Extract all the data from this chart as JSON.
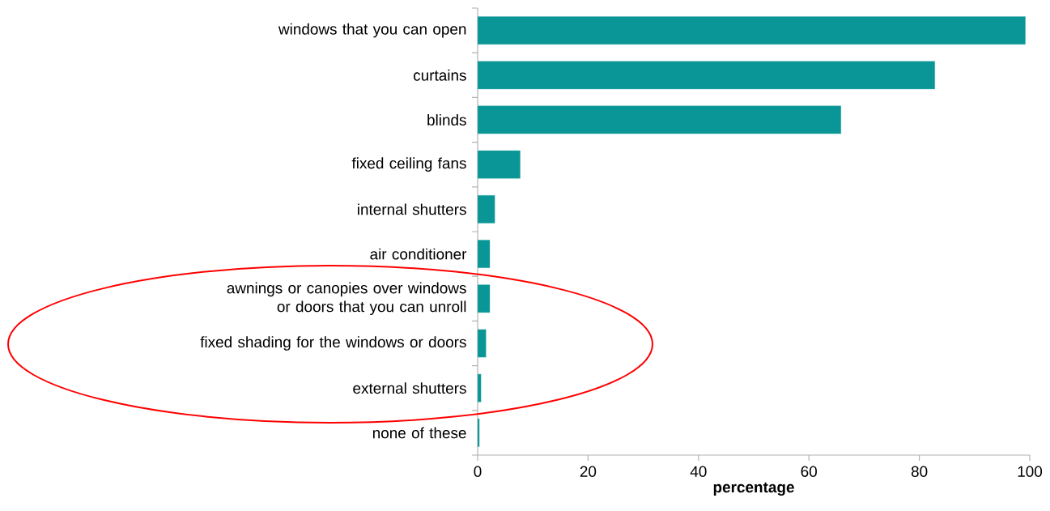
{
  "chart_data": {
    "type": "bar",
    "orientation": "horizontal",
    "xlabel": "percentage",
    "categories": [
      "windows that you can open",
      "curtains",
      "blinds",
      "fixed ceiling fans",
      "internal shutters",
      "air conditioner",
      "awnings or canopies over windows or doors that you can unroll",
      "fixed shading for the windows or doors",
      "external shutters",
      "none of these"
    ],
    "values": [
      99.2,
      82.8,
      65.8,
      7.7,
      3.1,
      2.2,
      2.2,
      1.5,
      0.6,
      0.3
    ],
    "color": "#0a9696",
    "xlim": [
      0,
      100
    ],
    "xticks": [
      0,
      20,
      40,
      60,
      80,
      100
    ],
    "grid": false
  }
}
